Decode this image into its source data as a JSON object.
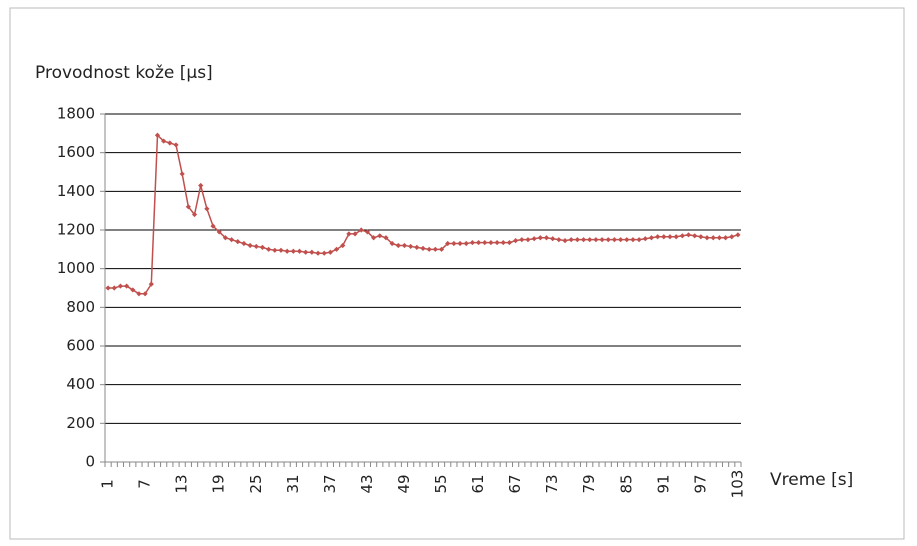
{
  "chart_data": {
    "type": "line",
    "y_axis_label": "Provodnost kože [µs]",
    "x_axis_label": "Vreme [s]",
    "categories": [
      1,
      null,
      null,
      null,
      null,
      null,
      7,
      null,
      null,
      null,
      null,
      null,
      13,
      null,
      null,
      null,
      null,
      null,
      19,
      null,
      null,
      null,
      null,
      null,
      25,
      null,
      null,
      null,
      null,
      null,
      31,
      null,
      null,
      null,
      null,
      null,
      37,
      null,
      null,
      null,
      null,
      null,
      43,
      null,
      null,
      null,
      null,
      null,
      49,
      null,
      null,
      null,
      null,
      null,
      55,
      null,
      null,
      null,
      null,
      null,
      61,
      null,
      null,
      null,
      null,
      null,
      67,
      null,
      null,
      null,
      null,
      null,
      73,
      null,
      null,
      null,
      null,
      null,
      79,
      null,
      null,
      null,
      null,
      null,
      85,
      null,
      null,
      null,
      null,
      null,
      91,
      null,
      null,
      null,
      null,
      null,
      97,
      null,
      null,
      null,
      null,
      null,
      103
    ],
    "values": [
      900,
      900,
      910,
      910,
      890,
      870,
      870,
      920,
      1690,
      1660,
      1650,
      1640,
      1490,
      1320,
      1280,
      1430,
      1310,
      1220,
      1190,
      1160,
      1150,
      1140,
      1130,
      1120,
      1115,
      1110,
      1100,
      1095,
      1095,
      1090,
      1090,
      1090,
      1085,
      1085,
      1080,
      1080,
      1085,
      1100,
      1120,
      1180,
      1180,
      1200,
      1190,
      1160,
      1170,
      1160,
      1130,
      1120,
      1120,
      1115,
      1110,
      1105,
      1100,
      1100,
      1100,
      1130,
      1130,
      1130,
      1130,
      1135,
      1135,
      1135,
      1135,
      1135,
      1135,
      1135,
      1145,
      1150,
      1150,
      1155,
      1160,
      1160,
      1155,
      1150,
      1145,
      1150,
      1150,
      1150,
      1150,
      1150,
      1150,
      1150,
      1150,
      1150,
      1150,
      1150,
      1150,
      1155,
      1160,
      1165,
      1165,
      1165,
      1165,
      1170,
      1175,
      1170,
      1165,
      1160,
      1160,
      1160,
      1160,
      1165,
      1175
    ],
    "color": "#c0504d",
    "ylim": [
      0,
      1800
    ],
    "yticks": [
      0,
      200,
      400,
      600,
      800,
      1000,
      1200,
      1400,
      1600,
      1800
    ],
    "grid": true
  }
}
